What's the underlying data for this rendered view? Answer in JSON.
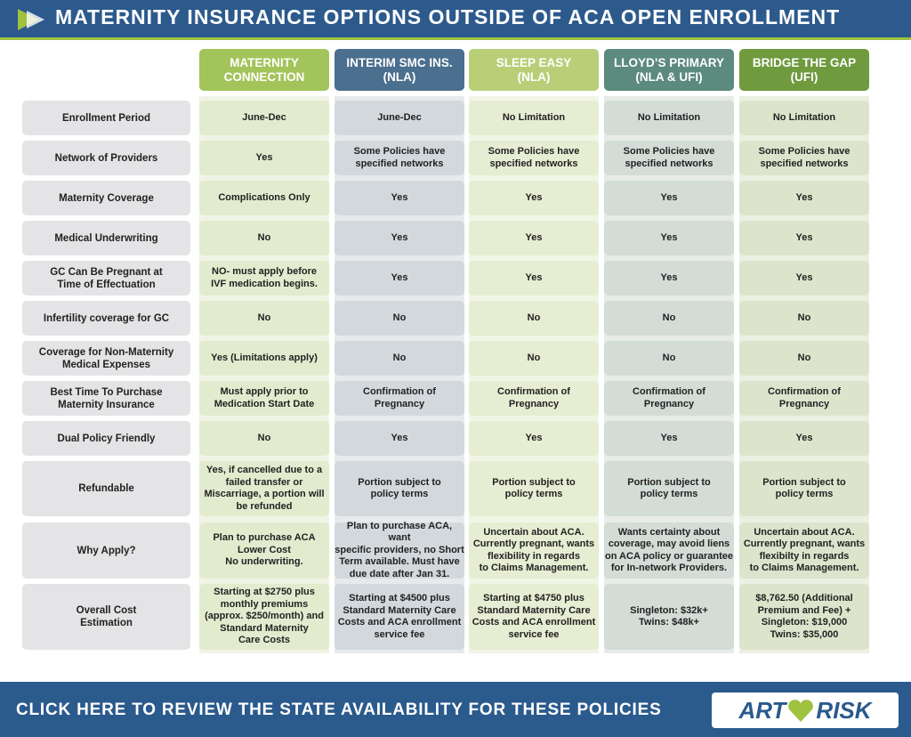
{
  "header": {
    "title": "MATERNITY INSURANCE OPTIONS OUTSIDE OF ACA OPEN ENROLLMENT"
  },
  "table": {
    "columns": [
      [
        "MATERNITY",
        "CONNECTION"
      ],
      [
        "INTERIM SMC INS.",
        "(NLA)"
      ],
      [
        "SLEEP EASY",
        "(NLA)"
      ],
      [
        "LLOYD’S PRIMARY",
        "(NLA & UFI)"
      ],
      [
        "BRIDGE THE GAP",
        "(UFI)"
      ]
    ],
    "rows": [
      {
        "label": [
          "Enrollment Period"
        ],
        "cells": [
          [
            "June-Dec"
          ],
          [
            "June-Dec"
          ],
          [
            "No Limitation"
          ],
          [
            "No Limitation"
          ],
          [
            "No Limitation"
          ]
        ]
      },
      {
        "label": [
          "Network of Providers"
        ],
        "cells": [
          [
            "Yes"
          ],
          [
            "Some Policies have",
            "specified networks"
          ],
          [
            "Some Policies have",
            "specified networks"
          ],
          [
            "Some Policies have",
            "specified networks"
          ],
          [
            "Some Policies have",
            "specified networks"
          ]
        ]
      },
      {
        "label": [
          "Maternity Coverage"
        ],
        "cells": [
          [
            "Complications Only"
          ],
          [
            "Yes"
          ],
          [
            "Yes"
          ],
          [
            "Yes"
          ],
          [
            "Yes"
          ]
        ]
      },
      {
        "label": [
          "Medical Underwriting"
        ],
        "cells": [
          [
            "No"
          ],
          [
            "Yes"
          ],
          [
            "Yes"
          ],
          [
            "Yes"
          ],
          [
            "Yes"
          ]
        ]
      },
      {
        "label": [
          "GC Can Be Pregnant at",
          "Time of Effectuation"
        ],
        "cells": [
          [
            "NO- must apply before",
            "IVF medication begins."
          ],
          [
            "Yes"
          ],
          [
            "Yes"
          ],
          [
            "Yes"
          ],
          [
            "Yes"
          ]
        ]
      },
      {
        "label": [
          "Infertility coverage for GC"
        ],
        "cells": [
          [
            "No"
          ],
          [
            "No"
          ],
          [
            "No"
          ],
          [
            "No"
          ],
          [
            "No"
          ]
        ]
      },
      {
        "label": [
          "Coverage for Non-Maternity",
          "Medical Expenses"
        ],
        "cells": [
          [
            "Yes (Limitations apply)"
          ],
          [
            "No"
          ],
          [
            "No"
          ],
          [
            "No"
          ],
          [
            "No"
          ]
        ]
      },
      {
        "label": [
          "Best Time To Purchase",
          "Maternity Insurance"
        ],
        "cells": [
          [
            "Must apply prior to",
            "Medication Start Date"
          ],
          [
            "Confirmation of",
            "Pregnancy"
          ],
          [
            "Confirmation of",
            "Pregnancy"
          ],
          [
            "Confirmation of",
            "Pregnancy"
          ],
          [
            "Confirmation of",
            "Pregnancy"
          ]
        ]
      },
      {
        "label": [
          "Dual Policy Friendly"
        ],
        "cells": [
          [
            "No"
          ],
          [
            "Yes"
          ],
          [
            "Yes"
          ],
          [
            "Yes"
          ],
          [
            "Yes"
          ]
        ]
      },
      {
        "label": [
          "Refundable"
        ],
        "cells": [
          [
            "Yes, if cancelled due to a",
            "failed transfer or",
            "Miscarriage, a portion will",
            "be refunded"
          ],
          [
            "Portion subject to",
            "policy terms"
          ],
          [
            "Portion subject to",
            "policy terms"
          ],
          [
            "Portion subject to",
            "policy terms"
          ],
          [
            "Portion subject to",
            "policy terms"
          ]
        ]
      },
      {
        "label": [
          "Why Apply?"
        ],
        "cells": [
          [
            "Plan to purchase ACA",
            "Lower Cost",
            "No underwriting."
          ],
          [
            "Plan to purchase ACA, want",
            "specific providers, no Short",
            "Term available. Must have",
            "due date after Jan 31."
          ],
          [
            "Uncertain about ACA.",
            "Currently pregnant, wants",
            "flexibility in regards",
            "to Claims Management."
          ],
          [
            "Wants certainty about",
            "coverage, may avoid liens",
            "on ACA policy or guarantee",
            "for In-network Providers."
          ],
          [
            "Uncertain about ACA.",
            "Currently pregnant, wants",
            "flexibilty in regards",
            "to Claims Management."
          ]
        ]
      },
      {
        "label": [
          "Overall Cost",
          "Estimation"
        ],
        "cells": [
          [
            "Starting at $2750 plus",
            "monthly premiums",
            "(approx. $250/month) and",
            "Standard Maternity",
            "Care Costs"
          ],
          [
            "Starting at $4500 plus",
            "Standard Maternity Care",
            "Costs and ACA enrollment",
            "service fee"
          ],
          [
            "Starting at $4750 plus",
            "Standard Maternity Care",
            "Costs and ACA enrollment",
            "service fee"
          ],
          [
            "Singleton: $32k+",
            "Twins: $48k+"
          ],
          [
            "$8,762.50 (Additional",
            "Premium and Fee) +",
            "Singleton: $19,000",
            "Twins: $35,000"
          ]
        ]
      }
    ]
  },
  "footer": {
    "link": "CLICK HERE TO REVIEW THE STATE AVAILABILITY FOR THESE POLICIES",
    "logo_left": "ART",
    "logo_right": "RISK"
  }
}
